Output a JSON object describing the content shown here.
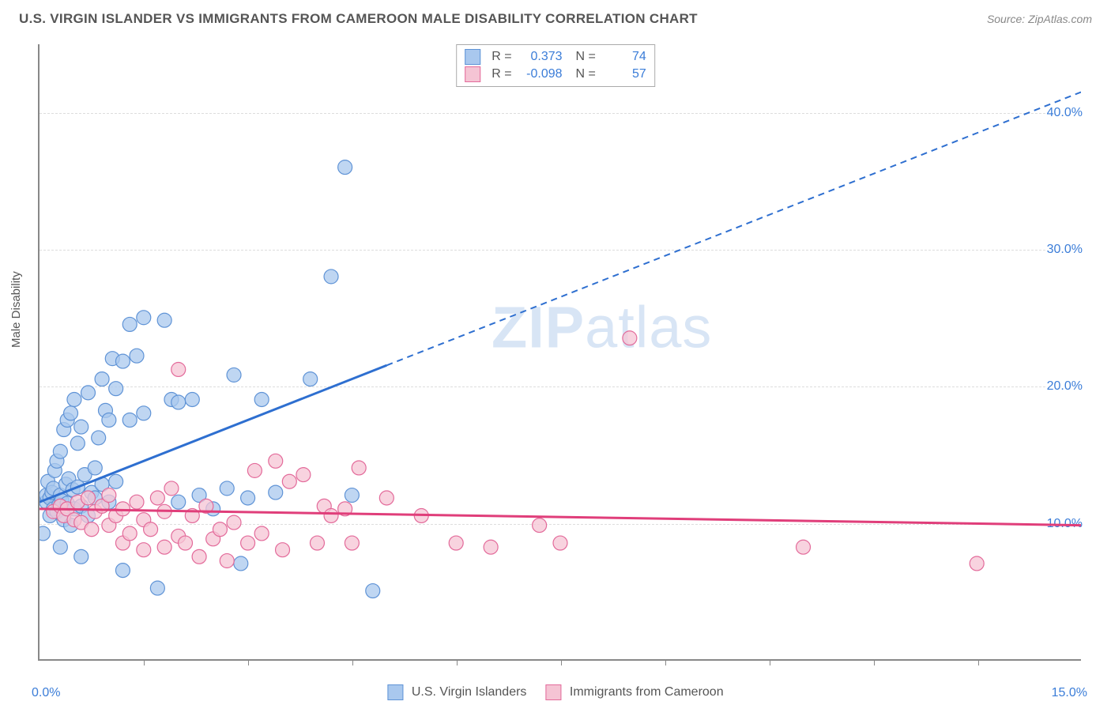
{
  "header": {
    "title": "U.S. VIRGIN ISLANDER VS IMMIGRANTS FROM CAMEROON MALE DISABILITY CORRELATION CHART",
    "source": "Source: ZipAtlas.com"
  },
  "chart": {
    "type": "scatter",
    "y_axis_label": "Male Disability",
    "watermark": "ZIPatlas",
    "xlim": [
      0,
      15
    ],
    "ylim": [
      0,
      45
    ],
    "x_tick_labels": {
      "min": "0.0%",
      "max": "15.0%"
    },
    "y_ticks": [
      {
        "value": 10,
        "label": "10.0%"
      },
      {
        "value": 20,
        "label": "20.0%"
      },
      {
        "value": 30,
        "label": "30.0%"
      },
      {
        "value": 40,
        "label": "40.0%"
      }
    ],
    "x_minor_ticks": [
      1.5,
      3.0,
      4.5,
      6.0,
      7.5,
      9.0,
      10.5,
      12.0,
      13.5
    ],
    "background_color": "#ffffff",
    "grid_color": "#dddddd",
    "axis_color": "#888888",
    "marker_radius": 9,
    "marker_stroke_width": 1.2,
    "line_width": 3,
    "dash_pattern": "8,6",
    "series": [
      {
        "name": "U.S. Virgin Islanders",
        "fill": "#a9c8ee",
        "stroke": "#5f93d6",
        "line_color": "#2e6fd0",
        "R": "0.373",
        "N": "74",
        "regression": {
          "solid": [
            [
              0,
              11.5
            ],
            [
              5,
              21.5
            ]
          ],
          "dashed": [
            [
              5,
              21.5
            ],
            [
              15,
              41.5
            ]
          ]
        },
        "points": [
          [
            0.05,
            9.2
          ],
          [
            0.1,
            11.5
          ],
          [
            0.1,
            12.0
          ],
          [
            0.12,
            13.0
          ],
          [
            0.15,
            10.5
          ],
          [
            0.15,
            11.8
          ],
          [
            0.18,
            12.2
          ],
          [
            0.2,
            11.0
          ],
          [
            0.2,
            12.5
          ],
          [
            0.22,
            13.8
          ],
          [
            0.25,
            10.8
          ],
          [
            0.25,
            14.5
          ],
          [
            0.28,
            11.3
          ],
          [
            0.3,
            12.0
          ],
          [
            0.3,
            15.2
          ],
          [
            0.32,
            11.6
          ],
          [
            0.35,
            10.2
          ],
          [
            0.35,
            16.8
          ],
          [
            0.38,
            12.8
          ],
          [
            0.4,
            11.4
          ],
          [
            0.4,
            17.5
          ],
          [
            0.42,
            13.2
          ],
          [
            0.45,
            9.8
          ],
          [
            0.45,
            18.0
          ],
          [
            0.48,
            12.4
          ],
          [
            0.5,
            11.0
          ],
          [
            0.5,
            19.0
          ],
          [
            0.55,
            15.8
          ],
          [
            0.55,
            12.6
          ],
          [
            0.6,
            11.2
          ],
          [
            0.6,
            17.0
          ],
          [
            0.65,
            13.5
          ],
          [
            0.7,
            10.5
          ],
          [
            0.7,
            19.5
          ],
          [
            0.75,
            12.2
          ],
          [
            0.8,
            14.0
          ],
          [
            0.8,
            11.8
          ],
          [
            0.85,
            16.2
          ],
          [
            0.9,
            20.5
          ],
          [
            0.9,
            12.8
          ],
          [
            0.95,
            18.2
          ],
          [
            1.0,
            11.5
          ],
          [
            1.0,
            17.5
          ],
          [
            1.05,
            22.0
          ],
          [
            1.1,
            13.0
          ],
          [
            1.1,
            19.8
          ],
          [
            1.2,
            21.8
          ],
          [
            1.3,
            17.5
          ],
          [
            1.3,
            24.5
          ],
          [
            1.4,
            22.2
          ],
          [
            1.5,
            18.0
          ],
          [
            1.5,
            25.0
          ],
          [
            1.7,
            5.2
          ],
          [
            1.8,
            24.8
          ],
          [
            1.9,
            19.0
          ],
          [
            2.0,
            11.5
          ],
          [
            2.0,
            18.8
          ],
          [
            2.2,
            19.0
          ],
          [
            2.3,
            12.0
          ],
          [
            2.5,
            11.0
          ],
          [
            2.7,
            12.5
          ],
          [
            2.8,
            20.8
          ],
          [
            2.9,
            7.0
          ],
          [
            3.0,
            11.8
          ],
          [
            3.2,
            19.0
          ],
          [
            3.4,
            12.2
          ],
          [
            3.9,
            20.5
          ],
          [
            4.2,
            28.0
          ],
          [
            4.4,
            36.0
          ],
          [
            4.5,
            12.0
          ],
          [
            4.8,
            5.0
          ],
          [
            0.3,
            8.2
          ],
          [
            0.6,
            7.5
          ],
          [
            1.2,
            6.5
          ]
        ]
      },
      {
        "name": "Immigrants from Cameroon",
        "fill": "#f5c4d4",
        "stroke": "#e36a9a",
        "line_color": "#e03e7a",
        "R": "-0.098",
        "N": "57",
        "regression": {
          "solid": [
            [
              0,
              11.0
            ],
            [
              15,
              9.8
            ]
          ],
          "dashed": null
        },
        "points": [
          [
            0.2,
            10.8
          ],
          [
            0.3,
            11.2
          ],
          [
            0.35,
            10.5
          ],
          [
            0.4,
            11.0
          ],
          [
            0.5,
            10.2
          ],
          [
            0.55,
            11.5
          ],
          [
            0.6,
            10.0
          ],
          [
            0.7,
            11.8
          ],
          [
            0.75,
            9.5
          ],
          [
            0.8,
            10.8
          ],
          [
            0.9,
            11.2
          ],
          [
            1.0,
            9.8
          ],
          [
            1.0,
            12.0
          ],
          [
            1.1,
            10.5
          ],
          [
            1.2,
            8.5
          ],
          [
            1.2,
            11.0
          ],
          [
            1.3,
            9.2
          ],
          [
            1.4,
            11.5
          ],
          [
            1.5,
            8.0
          ],
          [
            1.5,
            10.2
          ],
          [
            1.6,
            9.5
          ],
          [
            1.7,
            11.8
          ],
          [
            1.8,
            8.2
          ],
          [
            1.8,
            10.8
          ],
          [
            1.9,
            12.5
          ],
          [
            2.0,
            9.0
          ],
          [
            2.0,
            21.2
          ],
          [
            2.1,
            8.5
          ],
          [
            2.2,
            10.5
          ],
          [
            2.3,
            7.5
          ],
          [
            2.4,
            11.2
          ],
          [
            2.5,
            8.8
          ],
          [
            2.6,
            9.5
          ],
          [
            2.7,
            7.2
          ],
          [
            2.8,
            10.0
          ],
          [
            3.0,
            8.5
          ],
          [
            3.1,
            13.8
          ],
          [
            3.2,
            9.2
          ],
          [
            3.4,
            14.5
          ],
          [
            3.5,
            8.0
          ],
          [
            3.6,
            13.0
          ],
          [
            3.8,
            13.5
          ],
          [
            4.0,
            8.5
          ],
          [
            4.1,
            11.2
          ],
          [
            4.2,
            10.5
          ],
          [
            4.4,
            11.0
          ],
          [
            4.5,
            8.5
          ],
          [
            4.6,
            14.0
          ],
          [
            5.0,
            11.8
          ],
          [
            5.5,
            10.5
          ],
          [
            6.0,
            8.5
          ],
          [
            6.5,
            8.2
          ],
          [
            7.2,
            9.8
          ],
          [
            7.5,
            8.5
          ],
          [
            8.5,
            23.5
          ],
          [
            11.0,
            8.2
          ],
          [
            13.5,
            7.0
          ]
        ]
      }
    ]
  }
}
